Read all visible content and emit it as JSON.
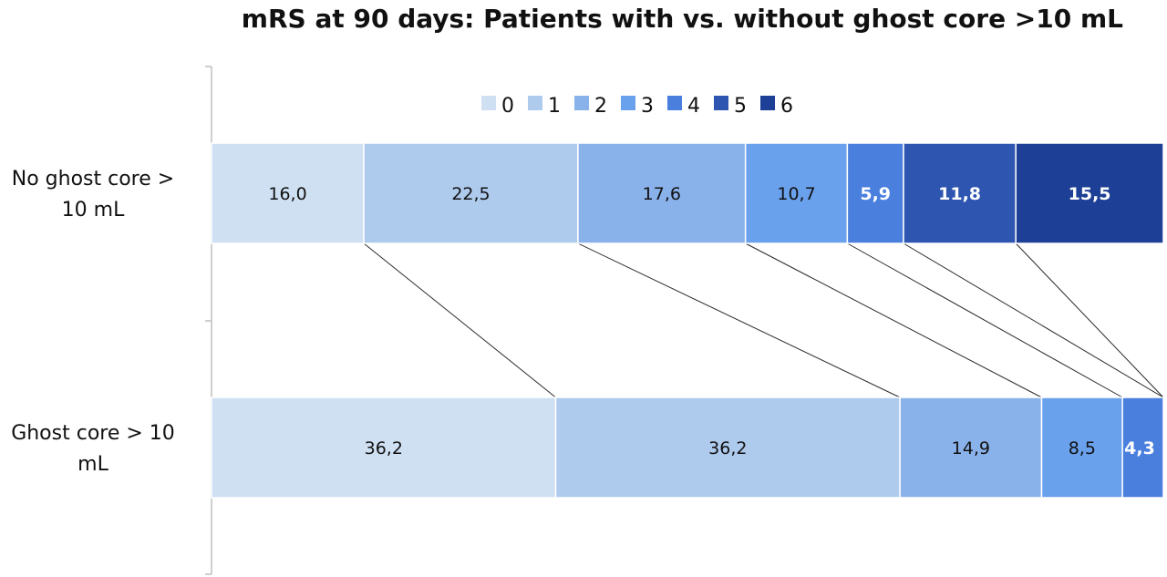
{
  "chart_data": {
    "type": "bar",
    "orientation": "horizontal",
    "stacked": "100%",
    "title": "mRS at 90 days: Patients with vs. without ghost core >10 mL",
    "categories": [
      [
        "No ghost core >",
        "10 mL"
      ],
      [
        "Ghost core > 10",
        "mL"
      ]
    ],
    "series": [
      {
        "name": "0",
        "values": [
          16.0,
          36.2
        ],
        "labels": [
          "16,0",
          "36,2"
        ],
        "color": "#cfe0f3",
        "text_color": "#111111"
      },
      {
        "name": "1",
        "values": [
          22.5,
          36.2
        ],
        "labels": [
          "22,5",
          "36,2"
        ],
        "color": "#aecbee",
        "text_color": "#111111"
      },
      {
        "name": "2",
        "values": [
          17.6,
          14.9
        ],
        "labels": [
          "17,6",
          "14,9"
        ],
        "color": "#8ab2ea",
        "text_color": "#111111"
      },
      {
        "name": "3",
        "values": [
          10.7,
          8.5
        ],
        "labels": [
          "10,7",
          "8,5"
        ],
        "color": "#6aa1ec",
        "text_color": "#111111"
      },
      {
        "name": "4",
        "values": [
          5.9,
          4.3
        ],
        "labels": [
          "5,9",
          "4,3"
        ],
        "color": "#4a7fde",
        "text_color": "#ffffff"
      },
      {
        "name": "5",
        "values": [
          11.8,
          0
        ],
        "labels": [
          "11,8",
          ""
        ],
        "color": "#2e56b0",
        "text_color": "#ffffff"
      },
      {
        "name": "6",
        "values": [
          15.5,
          0
        ],
        "labels": [
          "15,5",
          ""
        ],
        "color": "#1d3f95",
        "text_color": "#ffffff"
      }
    ],
    "legend": {
      "position": "top",
      "entries": [
        "0",
        "1",
        "2",
        "3",
        "4",
        "5",
        "6"
      ]
    },
    "series_lines": true,
    "grid": false
  }
}
